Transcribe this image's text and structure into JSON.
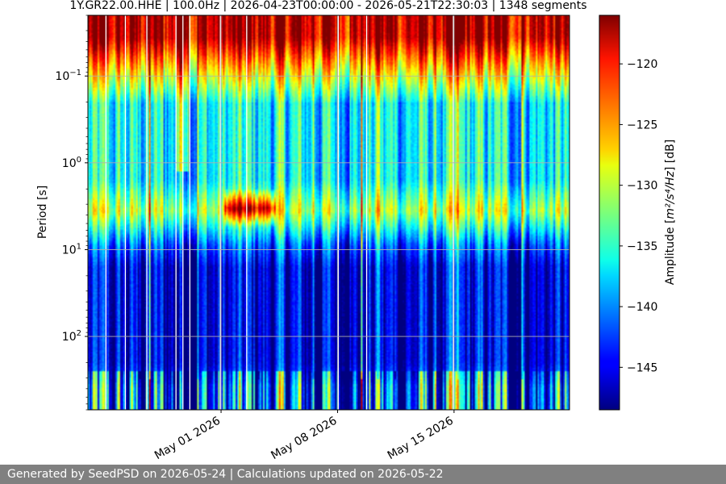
{
  "chart_data": {
    "type": "heatmap",
    "title": "1Y.GR22.00.HHE | 100.0Hz | 2026-04-23T00:00:00 - 2026-05-21T22:30:03 | 1348 segments",
    "ylabel": "Period [s]",
    "y_scale": "log",
    "y_inverted": true,
    "ylim": [
      0.02,
      700
    ],
    "y_ticks": [
      {
        "value": 0.1,
        "base": "10",
        "exp": "−1"
      },
      {
        "value": 1,
        "base": "10",
        "exp": "0"
      },
      {
        "value": 10,
        "base": "10",
        "exp": "1"
      },
      {
        "value": 100,
        "base": "10",
        "exp": "2"
      }
    ],
    "xlim": [
      "2026-04-23T00:00:00",
      "2026-05-21T22:30:03"
    ],
    "x_ticks": [
      {
        "value": "2026-05-01",
        "label": "May 01 2026"
      },
      {
        "value": "2026-05-08",
        "label": "May 08 2026"
      },
      {
        "value": "2026-05-15",
        "label": "May 15 2026"
      }
    ],
    "grid": true,
    "colormap": "jet",
    "colorbar": {
      "label_pre": "Amplitude [",
      "label_math": "m²/s⁴/Hz",
      "label_post": "] [dB]",
      "range": [
        -148.5,
        -116
      ],
      "ticks": [
        {
          "value": -120,
          "label": "−120"
        },
        {
          "value": -125,
          "label": "−125"
        },
        {
          "value": -130,
          "label": "−130"
        },
        {
          "value": -135,
          "label": "−135"
        },
        {
          "value": -140,
          "label": "−140"
        },
        {
          "value": -145,
          "label": "−145"
        }
      ]
    },
    "gap_dates": [
      "2026-04-24T02:00",
      "2026-04-25T06:00",
      "2026-04-26T13:00",
      "2026-04-28T07:00",
      "2026-04-28T17:00",
      "2026-04-29T03:00",
      "2026-04-30T23:00",
      "2026-05-02T13:00",
      "2026-05-08T01:00",
      "2026-05-09T18:00",
      "2026-05-14T23:00"
    ]
  },
  "footer": {
    "text": "Generated by SeedPSD on 2026-05-24 | Calculations updated on 2026-05-22"
  }
}
